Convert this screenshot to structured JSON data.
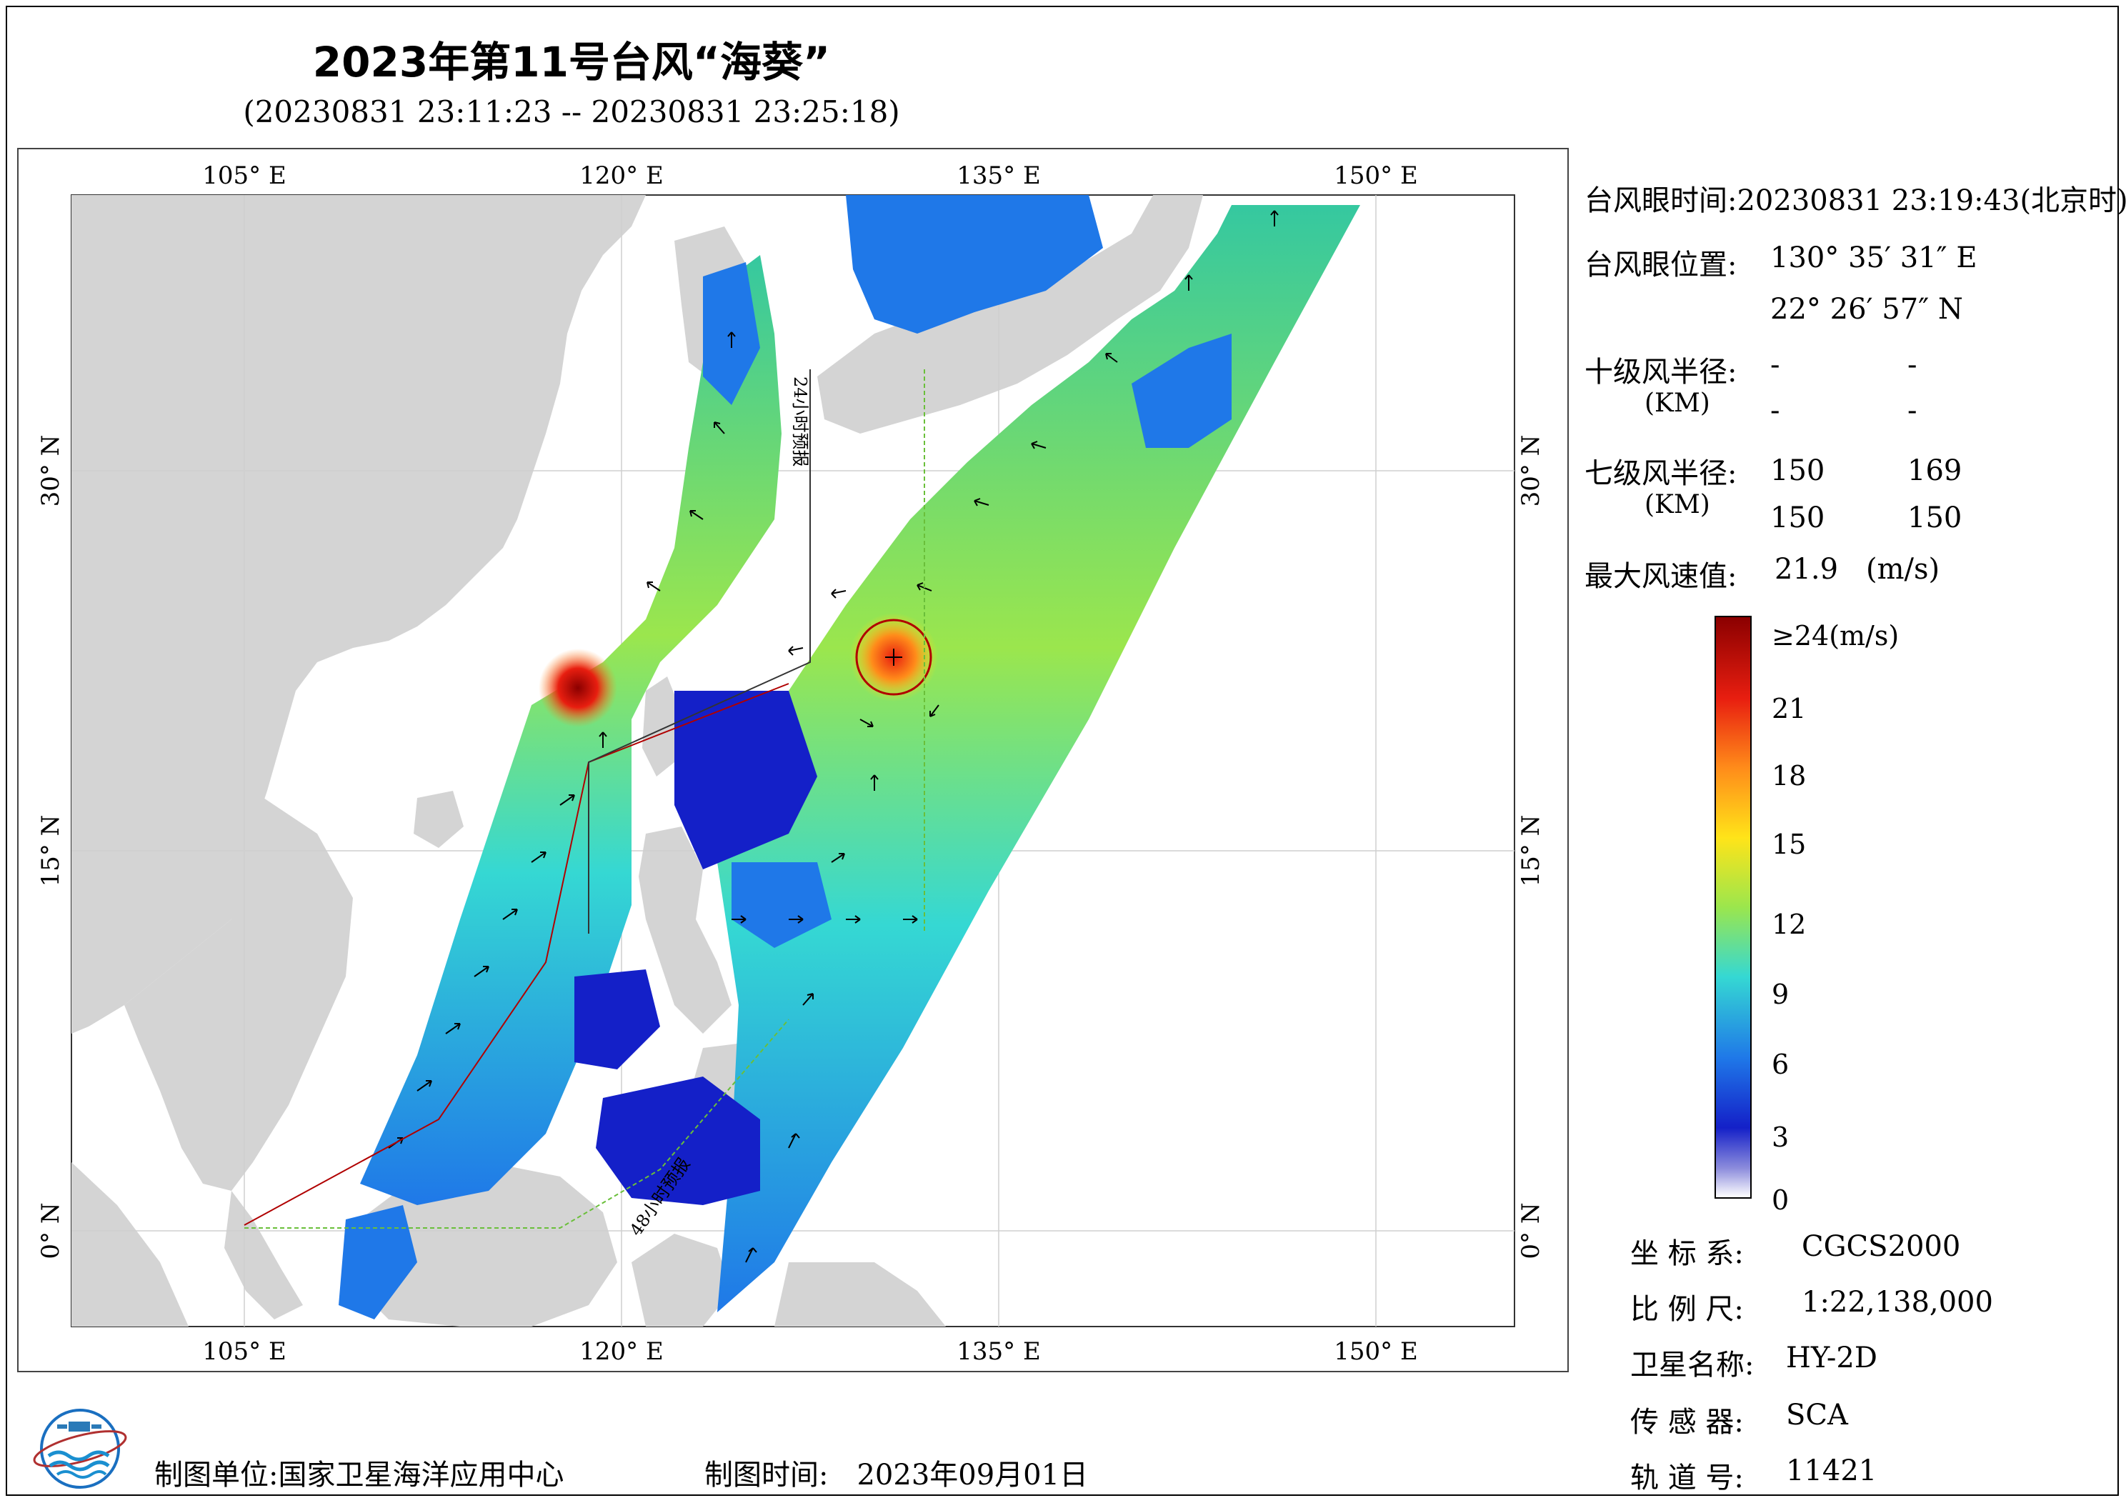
{
  "title": "2023年第11号台风“海葵”",
  "subtitle": "(20230831 23:11:23 -- 20230831 23:25:18)",
  "map": {
    "lon_ticks": [
      "105° E",
      "120° E",
      "135° E",
      "150° E"
    ],
    "lat_ticks": [
      "30° N",
      "15° N",
      "0° N"
    ],
    "track_label_1": "24小时预报",
    "track_label_2": "48小时预报"
  },
  "info": {
    "eye_time_label": "台风眼时间:",
    "eye_time_value": "20230831 23:19:43(北京时)",
    "eye_pos_label": "台风眼位置:",
    "eye_lon": "130° 35′ 31″ E",
    "eye_lat": "22° 26′ 57″ N",
    "r10_label": "十级风半径:",
    "r10_unit": "(KM)",
    "r10_values": [
      "-",
      "-",
      "-",
      "-"
    ],
    "r7_label": "七级风半径:",
    "r7_unit": "(KM)",
    "r7_values": [
      "150",
      "169",
      "150",
      "150"
    ],
    "max_wind_label": "最大风速值:",
    "max_wind_value": "21.9",
    "max_wind_unit": "(m/s)"
  },
  "colorbar": {
    "labels": [
      "≥24(m/s)",
      "21",
      "18",
      "15",
      "12",
      "9",
      "6",
      "3",
      "0"
    ],
    "colors": [
      "#8b0000",
      "#e81e10",
      "#ff8c1a",
      "#ffe419",
      "#9be64d",
      "#35d8d3",
      "#1f78e8",
      "#1420c8",
      "#e8e0f0"
    ]
  },
  "meta": {
    "coord_label": "坐 标 系:",
    "coord_value": "CGCS2000",
    "scale_label": "比 例 尺:",
    "scale_value": "1:22,138,000",
    "sat_label": "卫星名称:",
    "sat_value": "HY-2D",
    "sensor_label": "传 感 器:",
    "sensor_value": "SCA",
    "orbit_label": "轨 道 号:",
    "orbit_value": "11421"
  },
  "footer": {
    "org_label": "制图单位:",
    "org_value": "国家卫星海洋应用中心",
    "time_label": "制图时间:",
    "time_value": "2023年09月01日"
  }
}
